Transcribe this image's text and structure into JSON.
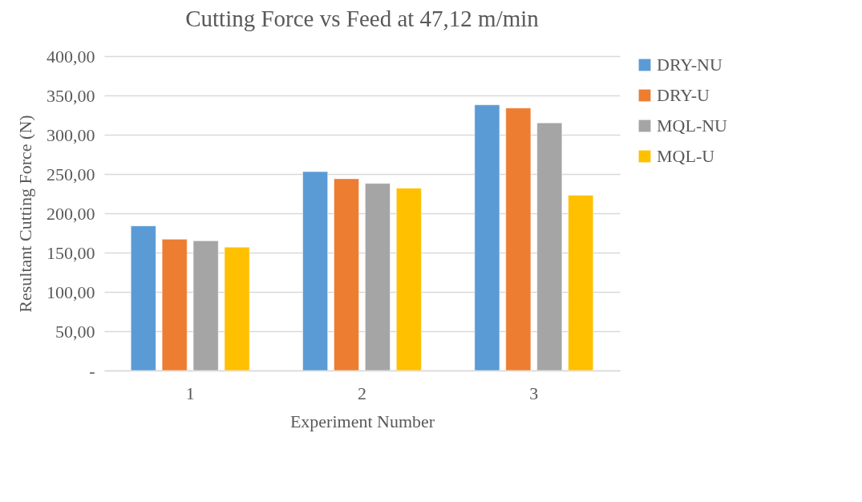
{
  "chart_data": {
    "type": "bar",
    "title": "Cutting Force vs Feed at 47,12 m/min",
    "xlabel": "Experiment Number",
    "ylabel": "Resultant Cutting Force (N)",
    "categories": [
      "1",
      "2",
      "3"
    ],
    "series": [
      {
        "name": "DRY-NU",
        "color": "#5b9bd5",
        "values": [
          184,
          253,
          338
        ]
      },
      {
        "name": "DRY-U",
        "color": "#ed7d31",
        "values": [
          167,
          244,
          334
        ]
      },
      {
        "name": "MQL-NU",
        "color": "#a5a5a5",
        "values": [
          165,
          238,
          315
        ]
      },
      {
        "name": "MQL-U",
        "color": "#ffc000",
        "values": [
          157,
          232,
          223
        ]
      }
    ],
    "ylim": [
      0,
      400
    ],
    "yticks": [
      {
        "value": 0,
        "label": "-"
      },
      {
        "value": 50,
        "label": "50,00"
      },
      {
        "value": 100,
        "label": "100,00"
      },
      {
        "value": 150,
        "label": "150,00"
      },
      {
        "value": 200,
        "label": "200,00"
      },
      {
        "value": 250,
        "label": "250,00"
      },
      {
        "value": 300,
        "label": "300,00"
      },
      {
        "value": 350,
        "label": "350,00"
      },
      {
        "value": 400,
        "label": "400,00"
      }
    ],
    "grid": "y",
    "legend": "right"
  }
}
